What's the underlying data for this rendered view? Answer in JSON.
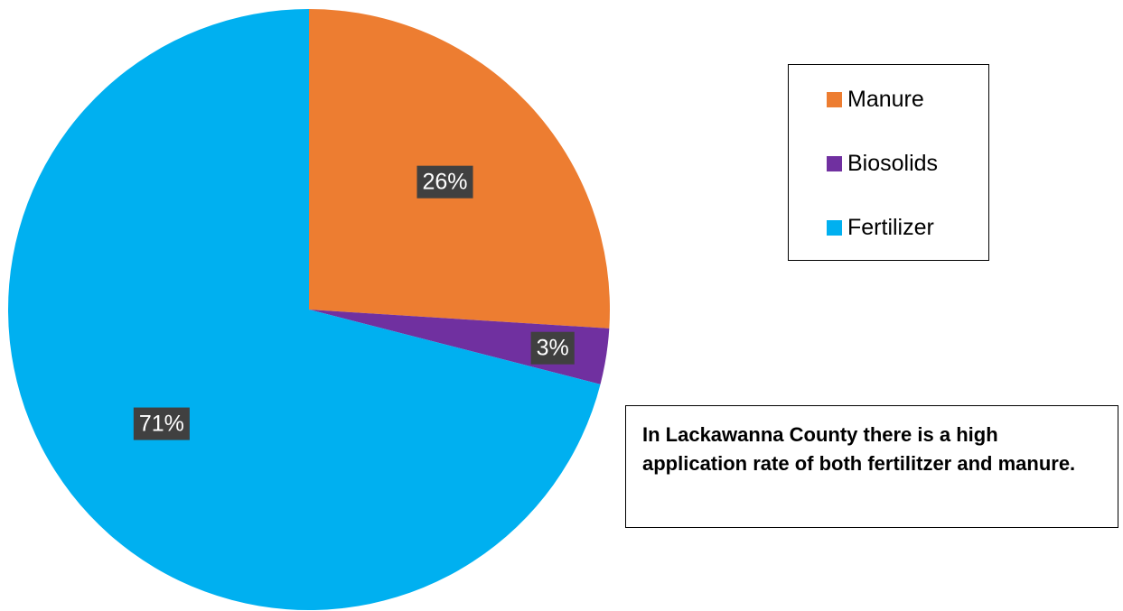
{
  "chart_data": {
    "type": "pie",
    "categories": [
      "Manure",
      "Biosolids",
      "Fertilizer"
    ],
    "values": [
      26,
      3,
      71
    ],
    "data_labels": [
      "26%",
      "3%",
      "71%"
    ],
    "colors": [
      "#ED7D31",
      "#7030A0",
      "#00B0F0"
    ],
    "label_color": "#404040",
    "start_angle_deg": 0,
    "direction": "clockwise",
    "legend": {
      "placement": "top-right",
      "entries": [
        "Manure",
        "Biosolids",
        "Fertilizer"
      ]
    },
    "title": ""
  },
  "note": {
    "text": "In Lackawanna County there is a high application rate of both fertilitzer and manure."
  }
}
